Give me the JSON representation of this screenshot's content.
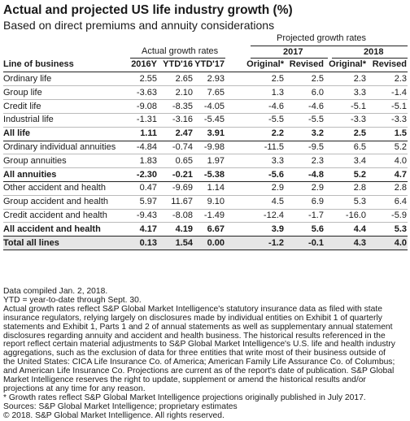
{
  "title": "Actual and projected US life industry growth (%)",
  "subtitle": "Based on direct premiums and annuity considerations",
  "header": {
    "projected_group": "Projected growth rates",
    "actual_group": "Actual growth rates",
    "year_2017": "2017",
    "year_2018": "2018",
    "line_col": "Line of business",
    "cols": [
      "2016Y",
      "YTD'16",
      "YTD'17",
      "Original*",
      "Revised",
      "Original*",
      "Revised"
    ]
  },
  "rows": [
    {
      "label": "Ordinary life",
      "values": [
        "2.55",
        "2.65",
        "2.93",
        "2.5",
        "2.5",
        "2.3",
        "2.3"
      ],
      "bold": false
    },
    {
      "label": "Group life",
      "values": [
        "-3.63",
        "2.10",
        "7.65",
        "1.3",
        "6.0",
        "3.3",
        "-1.4"
      ],
      "bold": false
    },
    {
      "label": "Credit life",
      "values": [
        "-9.08",
        "-8.35",
        "-4.05",
        "-4.6",
        "-4.6",
        "-5.1",
        "-5.1"
      ],
      "bold": false
    },
    {
      "label": "Industrial life",
      "values": [
        "-1.31",
        "-3.16",
        "-5.45",
        "-5.5",
        "-5.5",
        "-3.3",
        "-3.3"
      ],
      "bold": false
    },
    {
      "label": "All life",
      "values": [
        "1.11",
        "2.47",
        "3.91",
        "2.2",
        "3.2",
        "2.5",
        "1.5"
      ],
      "bold": true
    },
    {
      "label": "Ordinary individual annuities",
      "values": [
        "-4.84",
        "-0.74",
        "-9.98",
        "-11.5",
        "-9.5",
        "6.5",
        "5.2"
      ],
      "bold": false
    },
    {
      "label": "Group annuities",
      "values": [
        "1.83",
        "0.65",
        "1.97",
        "3.3",
        "2.3",
        "3.4",
        "4.0"
      ],
      "bold": false
    },
    {
      "label": "All annuities",
      "values": [
        "-2.30",
        "-0.21",
        "-5.38",
        "-5.6",
        "-4.8",
        "5.2",
        "4.7"
      ],
      "bold": true
    },
    {
      "label": "Other accident and health",
      "values": [
        "0.47",
        "-9.69",
        "1.14",
        "2.9",
        "2.9",
        "2.8",
        "2.8"
      ],
      "bold": false
    },
    {
      "label": "Group accident and health",
      "values": [
        "5.97",
        "11.67",
        "9.10",
        "4.5",
        "6.9",
        "5.3",
        "6.4"
      ],
      "bold": false
    },
    {
      "label": "Credit accident and health",
      "values": [
        "-9.43",
        "-8.08",
        "-1.49",
        "-12.4",
        "-1.7",
        "-16.0",
        "-5.9"
      ],
      "bold": false
    },
    {
      "label": "All accident and health",
      "values": [
        "4.17",
        "4.19",
        "6.67",
        "3.9",
        "5.6",
        "4.4",
        "5.3"
      ],
      "bold": true
    },
    {
      "label": "Total all lines",
      "values": [
        "0.13",
        "1.54",
        "0.00",
        "-1.2",
        "-0.1",
        "4.3",
        "4.0"
      ],
      "bold": true
    }
  ],
  "notes": [
    "Data compiled Jan. 2, 2018.",
    "YTD = year-to-date through Sept. 30.",
    "Actual growth rates reflect S&P Global Market Intelligence's statutory insurance data as filed with state",
    "insurance regulators, relying largely on disclosures made by individual entities on Exhibit 1 of quarterly",
    "statements and Exhibit 1, Parts 1 and 2 of annual statements as well as supplementary annual statement",
    "disclosures regarding annuity and accident and health business. The historical results referenced in the",
    "report reflect certain material adjustments to S&P Global Market Intelligence's U.S. life and health industry",
    "aggregations, such as the exclusion of data for three entities that write most of their business outside of",
    "the United States: CICA Life Insurance Co. of America; American Family Life Assurance Co. of Columbus;",
    "and American Life Insurance Co. Projections are current as of the report's date of publication. S&P Global",
    "Market Intelligence reserves the right to update, supplement or amend the historical results and/or",
    "projections at any time for any reason.",
    "* Growth rates reflect S&P Global Market Intelligence projections originally published in July 2017.",
    "Sources: S&P Global Market Intelligence; proprietary estimates",
    "© 2018. S&P Global Market Intelligence. All rights reserved."
  ]
}
